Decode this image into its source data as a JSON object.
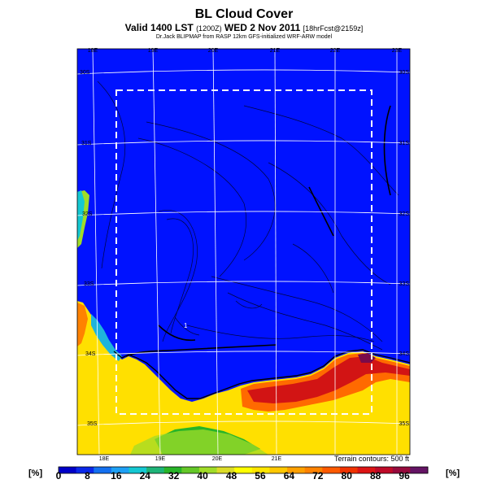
{
  "header": {
    "title": "BL Cloud Cover",
    "subtitle_main": "Valid 1400 LST",
    "subtitle_run": "(1200Z)",
    "subtitle_date": "WED 2 Nov 2011",
    "subtitle_fcst": "[18hrFcst@2159z]",
    "credit": "Dr.Jack BLIPMAP from RASP 12km GFS-initialized WRF-ARW model"
  },
  "map": {
    "lon_top": [
      "18E",
      "19E",
      "20E",
      "21E",
      "22E",
      "23E"
    ],
    "lon_bottom": [
      "18E",
      "19E",
      "20E",
      "21E"
    ],
    "lat_left": [
      "30S",
      "31S",
      "32S",
      "33S",
      "34S",
      "35S"
    ],
    "lat_right": [
      "30S",
      "31S",
      "32S",
      "33S",
      "34S",
      "35S"
    ],
    "marker": "1",
    "terrain_note": "Terrain contours: 500 ft"
  },
  "colorbar": {
    "unit_left": "[%]",
    "unit_right": "[%]",
    "ticks": [
      "0",
      "8",
      "16",
      "24",
      "32",
      "40",
      "48",
      "56",
      "64",
      "72",
      "80",
      "88",
      "96"
    ],
    "colors": [
      "#0000c8",
      "#0a28e8",
      "#1470f0",
      "#1ea0f5",
      "#14c8d2",
      "#1eb478",
      "#28b428",
      "#64c828",
      "#a0dc28",
      "#dcdc28",
      "#ffff00",
      "#ffe600",
      "#ffc800",
      "#ffa000",
      "#ff8200",
      "#ff5a00",
      "#f03200",
      "#dc1414",
      "#be0a28",
      "#960a3c",
      "#641464"
    ]
  }
}
